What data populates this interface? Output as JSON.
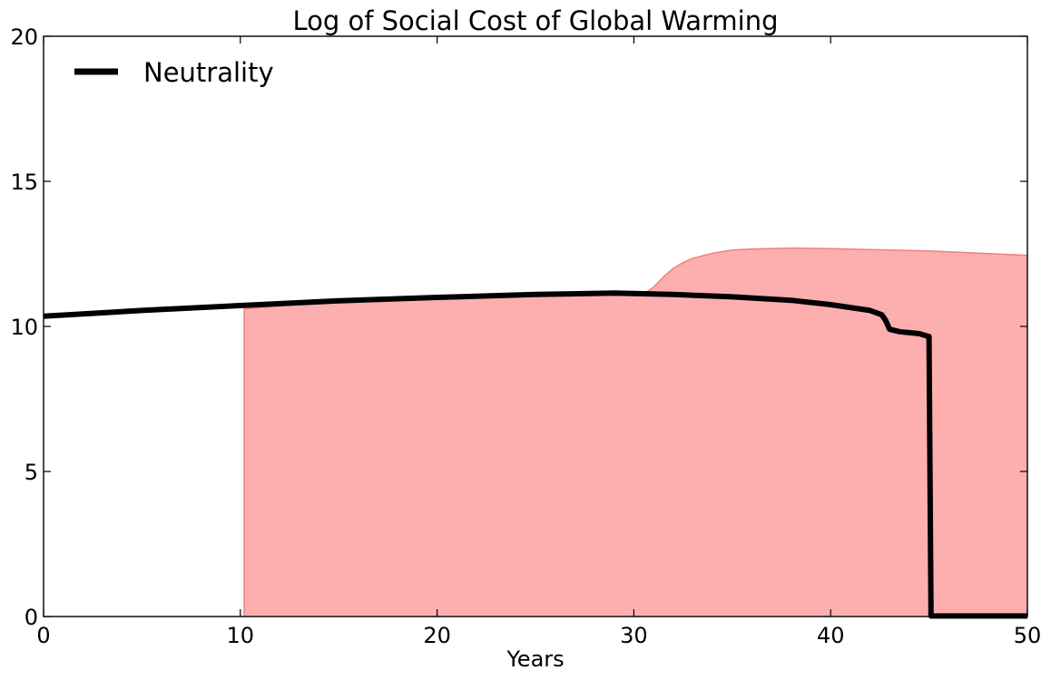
{
  "chart_data": {
    "type": "line",
    "title": "Log of Social Cost of Global Warming",
    "xlabel": "Years",
    "ylabel": "",
    "xlim": [
      0,
      50
    ],
    "ylim": [
      0,
      20
    ],
    "xticks": [
      "0",
      "10",
      "20",
      "30",
      "40",
      "50"
    ],
    "yticks": [
      "0",
      "5",
      "10",
      "15",
      "20"
    ],
    "xtick_values": [
      0,
      10,
      20,
      30,
      40,
      50
    ],
    "ytick_values": [
      0,
      5,
      10,
      15,
      20
    ],
    "grid": false,
    "legend": {
      "placement": "top-left",
      "entries": [
        "Neutrality"
      ]
    },
    "series": [
      {
        "name": "Neutrality",
        "color": "#000000",
        "x": [
          0,
          5,
          10,
          15,
          20,
          25,
          29,
          32,
          35,
          38,
          40,
          42,
          42.6,
          42.8,
          43.0,
          43.5,
          44.5,
          45.0,
          45.1,
          45.15,
          47,
          50
        ],
        "y": [
          10.35,
          10.55,
          10.72,
          10.88,
          11.0,
          11.1,
          11.15,
          11.1,
          11.02,
          10.9,
          10.75,
          10.55,
          10.4,
          10.2,
          9.9,
          9.82,
          9.75,
          9.65,
          0.02,
          0.02,
          0.02,
          0.02
        ]
      }
    ],
    "band": {
      "color": "#fc7a7a",
      "edge_color": "#f08080",
      "x": [
        10.2,
        15,
        20,
        25,
        29,
        30.5,
        31,
        31.5,
        32,
        32.5,
        33,
        34,
        35,
        36,
        38,
        40,
        45,
        50
      ],
      "lower": [
        0,
        0,
        0,
        0,
        0,
        0,
        0,
        0,
        0,
        0,
        0,
        0,
        0,
        0,
        0,
        0,
        0,
        0
      ],
      "upper": [
        10.6,
        10.88,
        11.0,
        11.1,
        11.15,
        11.12,
        11.35,
        11.7,
        12.0,
        12.2,
        12.35,
        12.52,
        12.63,
        12.67,
        12.7,
        12.68,
        12.6,
        12.45
      ]
    }
  }
}
